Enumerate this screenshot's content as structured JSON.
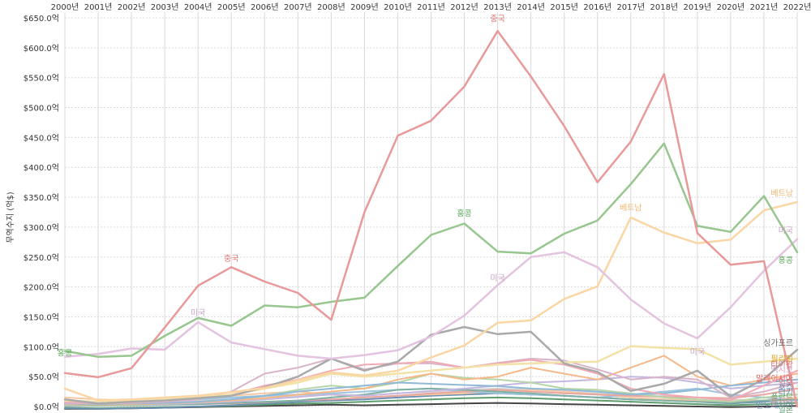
{
  "chart_data": {
    "type": "line",
    "ylabel": "무역수지 (억$)",
    "ylim": [
      0,
      650
    ],
    "y_ticks": [
      "$0.0억",
      "$50.0억",
      "$100.0억",
      "$150.0억",
      "$200.0억",
      "$250.0억",
      "$300.0억",
      "$350.0억",
      "$400.0억",
      "$450.0억",
      "$500.0억",
      "$550.0억",
      "$600.0억",
      "$650.0억"
    ],
    "y_tick_values": [
      0,
      50,
      100,
      150,
      200,
      250,
      300,
      350,
      400,
      450,
      500,
      550,
      600,
      650
    ],
    "x": [
      "2000년",
      "2001년",
      "2002년",
      "2003년",
      "2004년",
      "2005년",
      "2006년",
      "2007년",
      "2008년",
      "2009년",
      "2010년",
      "2011년",
      "2012년",
      "2013년",
      "2014년",
      "2015년",
      "2016년",
      "2017년",
      "2018년",
      "2019년",
      "2020년",
      "2021년",
      "2022년"
    ],
    "grid": true,
    "series": [
      {
        "name": "중국",
        "color": "#e8999a",
        "width": 2.5,
        "values": [
          56,
          49,
          64,
          132,
          202,
          233,
          209,
          190,
          145,
          325,
          453,
          478,
          535,
          628,
          552,
          469,
          375,
          443,
          556,
          290,
          237,
          243,
          0
        ]
      },
      {
        "name": "홍콩",
        "color": "#97c68f",
        "width": 2.5,
        "values": [
          93,
          83,
          85,
          118,
          148,
          135,
          169,
          166,
          175,
          182,
          235,
          287,
          306,
          259,
          256,
          289,
          311,
          372,
          440,
          302,
          292,
          352,
          258
        ]
      },
      {
        "name": "미국",
        "color": "#e3c3e0",
        "width": 2.5,
        "values": [
          83,
          88,
          97,
          95,
          141,
          107,
          96,
          85,
          80,
          86,
          94,
          117,
          152,
          203,
          250,
          258,
          233,
          179,
          139,
          114,
          166,
          227,
          280
        ]
      },
      {
        "name": "베트남",
        "color": "#fad6a5",
        "width": 2.5,
        "values": [
          30,
          10,
          12,
          15,
          18,
          24,
          31,
          44,
          57,
          52,
          60,
          82,
          102,
          140,
          144,
          180,
          201,
          316,
          291,
          273,
          279,
          328,
          342
        ]
      },
      {
        "name": "싱가포르",
        "color": "#a9a9a9",
        "width": 2.5,
        "values": [
          12,
          5,
          8,
          10,
          14,
          18,
          32,
          50,
          80,
          60,
          75,
          120,
          133,
          121,
          125,
          72,
          58,
          26,
          38,
          60,
          17,
          46,
          95
        ]
      },
      {
        "name": "",
        "color": "#f2e2a8",
        "width": 2.5,
        "values": [
          10,
          8,
          10,
          12,
          15,
          20,
          30,
          40,
          55,
          50,
          55,
          60,
          65,
          70,
          72,
          74,
          75,
          101,
          98,
          96,
          70,
          75,
          80
        ]
      },
      {
        "name": "",
        "color": "#f0aab3",
        "width": 2,
        "values": [
          8,
          6,
          7,
          10,
          14,
          20,
          35,
          45,
          60,
          70,
          72,
          75,
          65,
          72,
          78,
          70,
          55,
          30,
          20,
          15,
          10,
          35,
          60
        ]
      },
      {
        "name": "",
        "color": "#d9b4c9",
        "width": 2,
        "values": [
          6,
          5,
          6,
          8,
          12,
          25,
          55,
          65,
          80,
          62,
          72,
          72,
          65,
          73,
          80,
          77,
          62,
          45,
          50,
          45,
          15,
          25,
          40
        ]
      },
      {
        "name": "",
        "color": "#8fb9d6",
        "width": 2,
        "values": [
          5,
          4,
          5,
          6,
          8,
          12,
          18,
          25,
          30,
          35,
          40,
          38,
          36,
          34,
          30,
          28,
          25,
          20,
          22,
          28,
          35,
          40,
          45
        ]
      },
      {
        "name": "",
        "color": "#f4b889",
        "width": 2,
        "values": [
          4,
          3,
          4,
          5,
          7,
          10,
          14,
          20,
          25,
          30,
          45,
          55,
          45,
          50,
          65,
          55,
          45,
          65,
          85,
          50,
          35,
          45,
          55
        ]
      },
      {
        "name": "",
        "color": "#b7d6a8",
        "width": 2,
        "values": [
          3,
          2,
          3,
          5,
          8,
          10,
          18,
          28,
          35,
          30,
          40,
          55,
          48,
          45,
          40,
          30,
          28,
          22,
          15,
          12,
          8,
          15,
          20
        ]
      },
      {
        "name": "",
        "color": "#c4b7e0",
        "width": 2,
        "values": [
          2,
          2,
          3,
          4,
          6,
          8,
          12,
          16,
          20,
          18,
          22,
          26,
          30,
          35,
          40,
          42,
          45,
          50,
          48,
          40,
          30,
          35,
          40
        ]
      },
      {
        "name": "",
        "color": "#7fb0a3",
        "width": 2,
        "values": [
          1,
          1,
          2,
          3,
          4,
          6,
          8,
          10,
          15,
          20,
          28,
          30,
          28,
          25,
          22,
          18,
          15,
          12,
          10,
          8,
          6,
          10,
          12
        ]
      },
      {
        "name": "",
        "color": "#e7a6a0",
        "width": 2,
        "values": [
          2,
          2,
          2,
          3,
          4,
          5,
          7,
          10,
          12,
          15,
          18,
          22,
          25,
          28,
          25,
          22,
          20,
          18,
          16,
          15,
          14,
          20,
          30
        ]
      },
      {
        "name": "",
        "color": "#9ec4de",
        "width": 2,
        "values": [
          10,
          8,
          8,
          10,
          12,
          15,
          18,
          20,
          22,
          25,
          28,
          30,
          25,
          22,
          20,
          18,
          15,
          20,
          25,
          30,
          20,
          15,
          10
        ]
      },
      {
        "name": "",
        "color": "#f6c9a4",
        "width": 2,
        "values": [
          15,
          12,
          10,
          12,
          15,
          18,
          22,
          25,
          20,
          15,
          18,
          20,
          22,
          25,
          28,
          25,
          20,
          15,
          12,
          10,
          8,
          10,
          15
        ]
      },
      {
        "name": "",
        "color": "#d3d3d3",
        "width": 2,
        "values": [
          5,
          5,
          6,
          8,
          10,
          12,
          15,
          18,
          20,
          18,
          22,
          25,
          28,
          30,
          28,
          25,
          22,
          20,
          18,
          15,
          12,
          10,
          8
        ]
      },
      {
        "name": "",
        "color": "#6a8fb3",
        "width": 2,
        "values": [
          -3,
          -4,
          -3,
          -2,
          0,
          2,
          5,
          8,
          10,
          12,
          15,
          18,
          20,
          22,
          20,
          18,
          15,
          12,
          10,
          8,
          5,
          8,
          10
        ]
      },
      {
        "name": "",
        "color": "#5e9e6e",
        "width": 2,
        "values": [
          -2,
          -3,
          -2,
          -1,
          0,
          1,
          3,
          5,
          6,
          8,
          10,
          12,
          14,
          15,
          14,
          12,
          10,
          8,
          6,
          4,
          2,
          4,
          6
        ]
      },
      {
        "name": "",
        "color": "#444444",
        "width": 2,
        "values": [
          -4,
          -4,
          -3,
          -2,
          -1,
          0,
          1,
          2,
          3,
          2,
          3,
          4,
          5,
          6,
          5,
          4,
          3,
          2,
          1,
          0,
          -1,
          0,
          1
        ]
      }
    ],
    "annotations": [
      {
        "text": "중국",
        "x": "2013년",
        "y": 644,
        "color": "#e07070"
      },
      {
        "text": "중국",
        "x": "2005년",
        "y": 243,
        "color": "#e07070"
      },
      {
        "text": "홍콩",
        "x": "2012년",
        "y": 318,
        "color": "#5aa85a"
      },
      {
        "text": "홍콩",
        "x": "2000년",
        "y": 85,
        "color": "#5aa85a"
      },
      {
        "text": "미국",
        "x": "2004년",
        "y": 152,
        "color": "#c9a0c4"
      },
      {
        "text": "미국",
        "x": "2013년",
        "y": 210,
        "color": "#c9a0c4"
      },
      {
        "text": "미국",
        "x": "2019년",
        "y": 87,
        "color": "#c9a0c4"
      },
      {
        "text": "베트남",
        "x": "2017년",
        "y": 328,
        "color": "#f0b870"
      }
    ],
    "end_labels": [
      {
        "text": "베트남",
        "y": 352,
        "color": "#f0b870"
      },
      {
        "text": "미국",
        "y": 290,
        "color": "#c9a0c4"
      },
      {
        "text": "홍콩",
        "y": 240,
        "color": "#5aa85a"
      },
      {
        "text": "싱가포르",
        "y": 102,
        "color": "#666666"
      },
      {
        "text": "필리핀",
        "y": 75,
        "color": "#d8a020"
      },
      {
        "text": "타이완",
        "y": 66,
        "color": "#e07070"
      },
      {
        "text": "멕시코",
        "y": 57,
        "color": "#c9a0c4"
      },
      {
        "text": "말레이시아",
        "y": 42,
        "color": "#e06060"
      },
      {
        "text": "인도",
        "y": 35,
        "color": "#e07070"
      },
      {
        "text": "호주",
        "y": 27,
        "color": "#6a8fb3"
      },
      {
        "text": "터키",
        "y": 19,
        "color": "#6a8fb3"
      },
      {
        "text": "폴란드",
        "y": 11,
        "color": "#5e9e6e"
      },
      {
        "text": "헝가리",
        "y": 4,
        "color": "#e8999a"
      },
      {
        "text": "인도네시아",
        "y": -3,
        "color": "#6a8fb3"
      },
      {
        "text": "일본",
        "y": -10,
        "color": "#5e9e6e"
      }
    ]
  }
}
